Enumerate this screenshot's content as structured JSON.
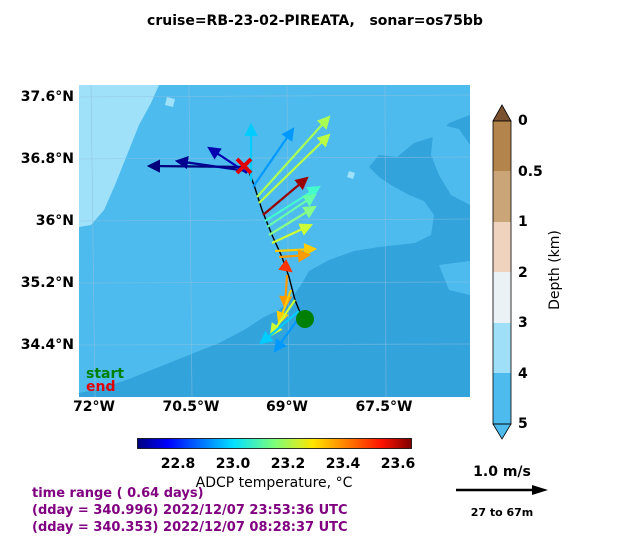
{
  "title": "cruise=RB-23-02-PIREATA,   sonar=os75bb",
  "map": {
    "lat_labels": [
      "37.6°N",
      "36.8°N",
      "36°N",
      "35.2°N",
      "34.4°N"
    ],
    "lon_labels": [
      "72°W",
      "70.5°W",
      "69°W",
      "67.5°W"
    ],
    "legend_start": "start",
    "legend_end": "end",
    "colors": {
      "land": "#a0e1fa",
      "shelf": "#4ebbee",
      "deep": "#33a3dc",
      "track": "#000000",
      "start_marker": "#008000",
      "end_marker": "#e00000"
    }
  },
  "depth_colorbar": {
    "label": "Depth (km)",
    "ticks": [
      "0",
      "0.5",
      "1",
      "2",
      "3",
      "4",
      "5"
    ],
    "colors": [
      "#b3854c",
      "#c9a577",
      "#f0d3be",
      "#eaf2f6",
      "#9fe0f8",
      "#4ebbee"
    ]
  },
  "temp_colorbar": {
    "label": "ADCP temperature, °C",
    "ticks": [
      "22.8",
      "23.0",
      "23.2",
      "23.4",
      "23.6"
    ],
    "range": [
      22.65,
      23.65
    ]
  },
  "info": {
    "line1": "time range ( 0.64 days)",
    "line2": "(dday = 340.996) 2022/12/07 23:53:36 UTC",
    "line3": "(dday = 340.353) 2022/12/07 08:28:37 UTC"
  },
  "scale": {
    "speed": "1.0 m/s",
    "depth_range": "27 to 67m"
  }
}
